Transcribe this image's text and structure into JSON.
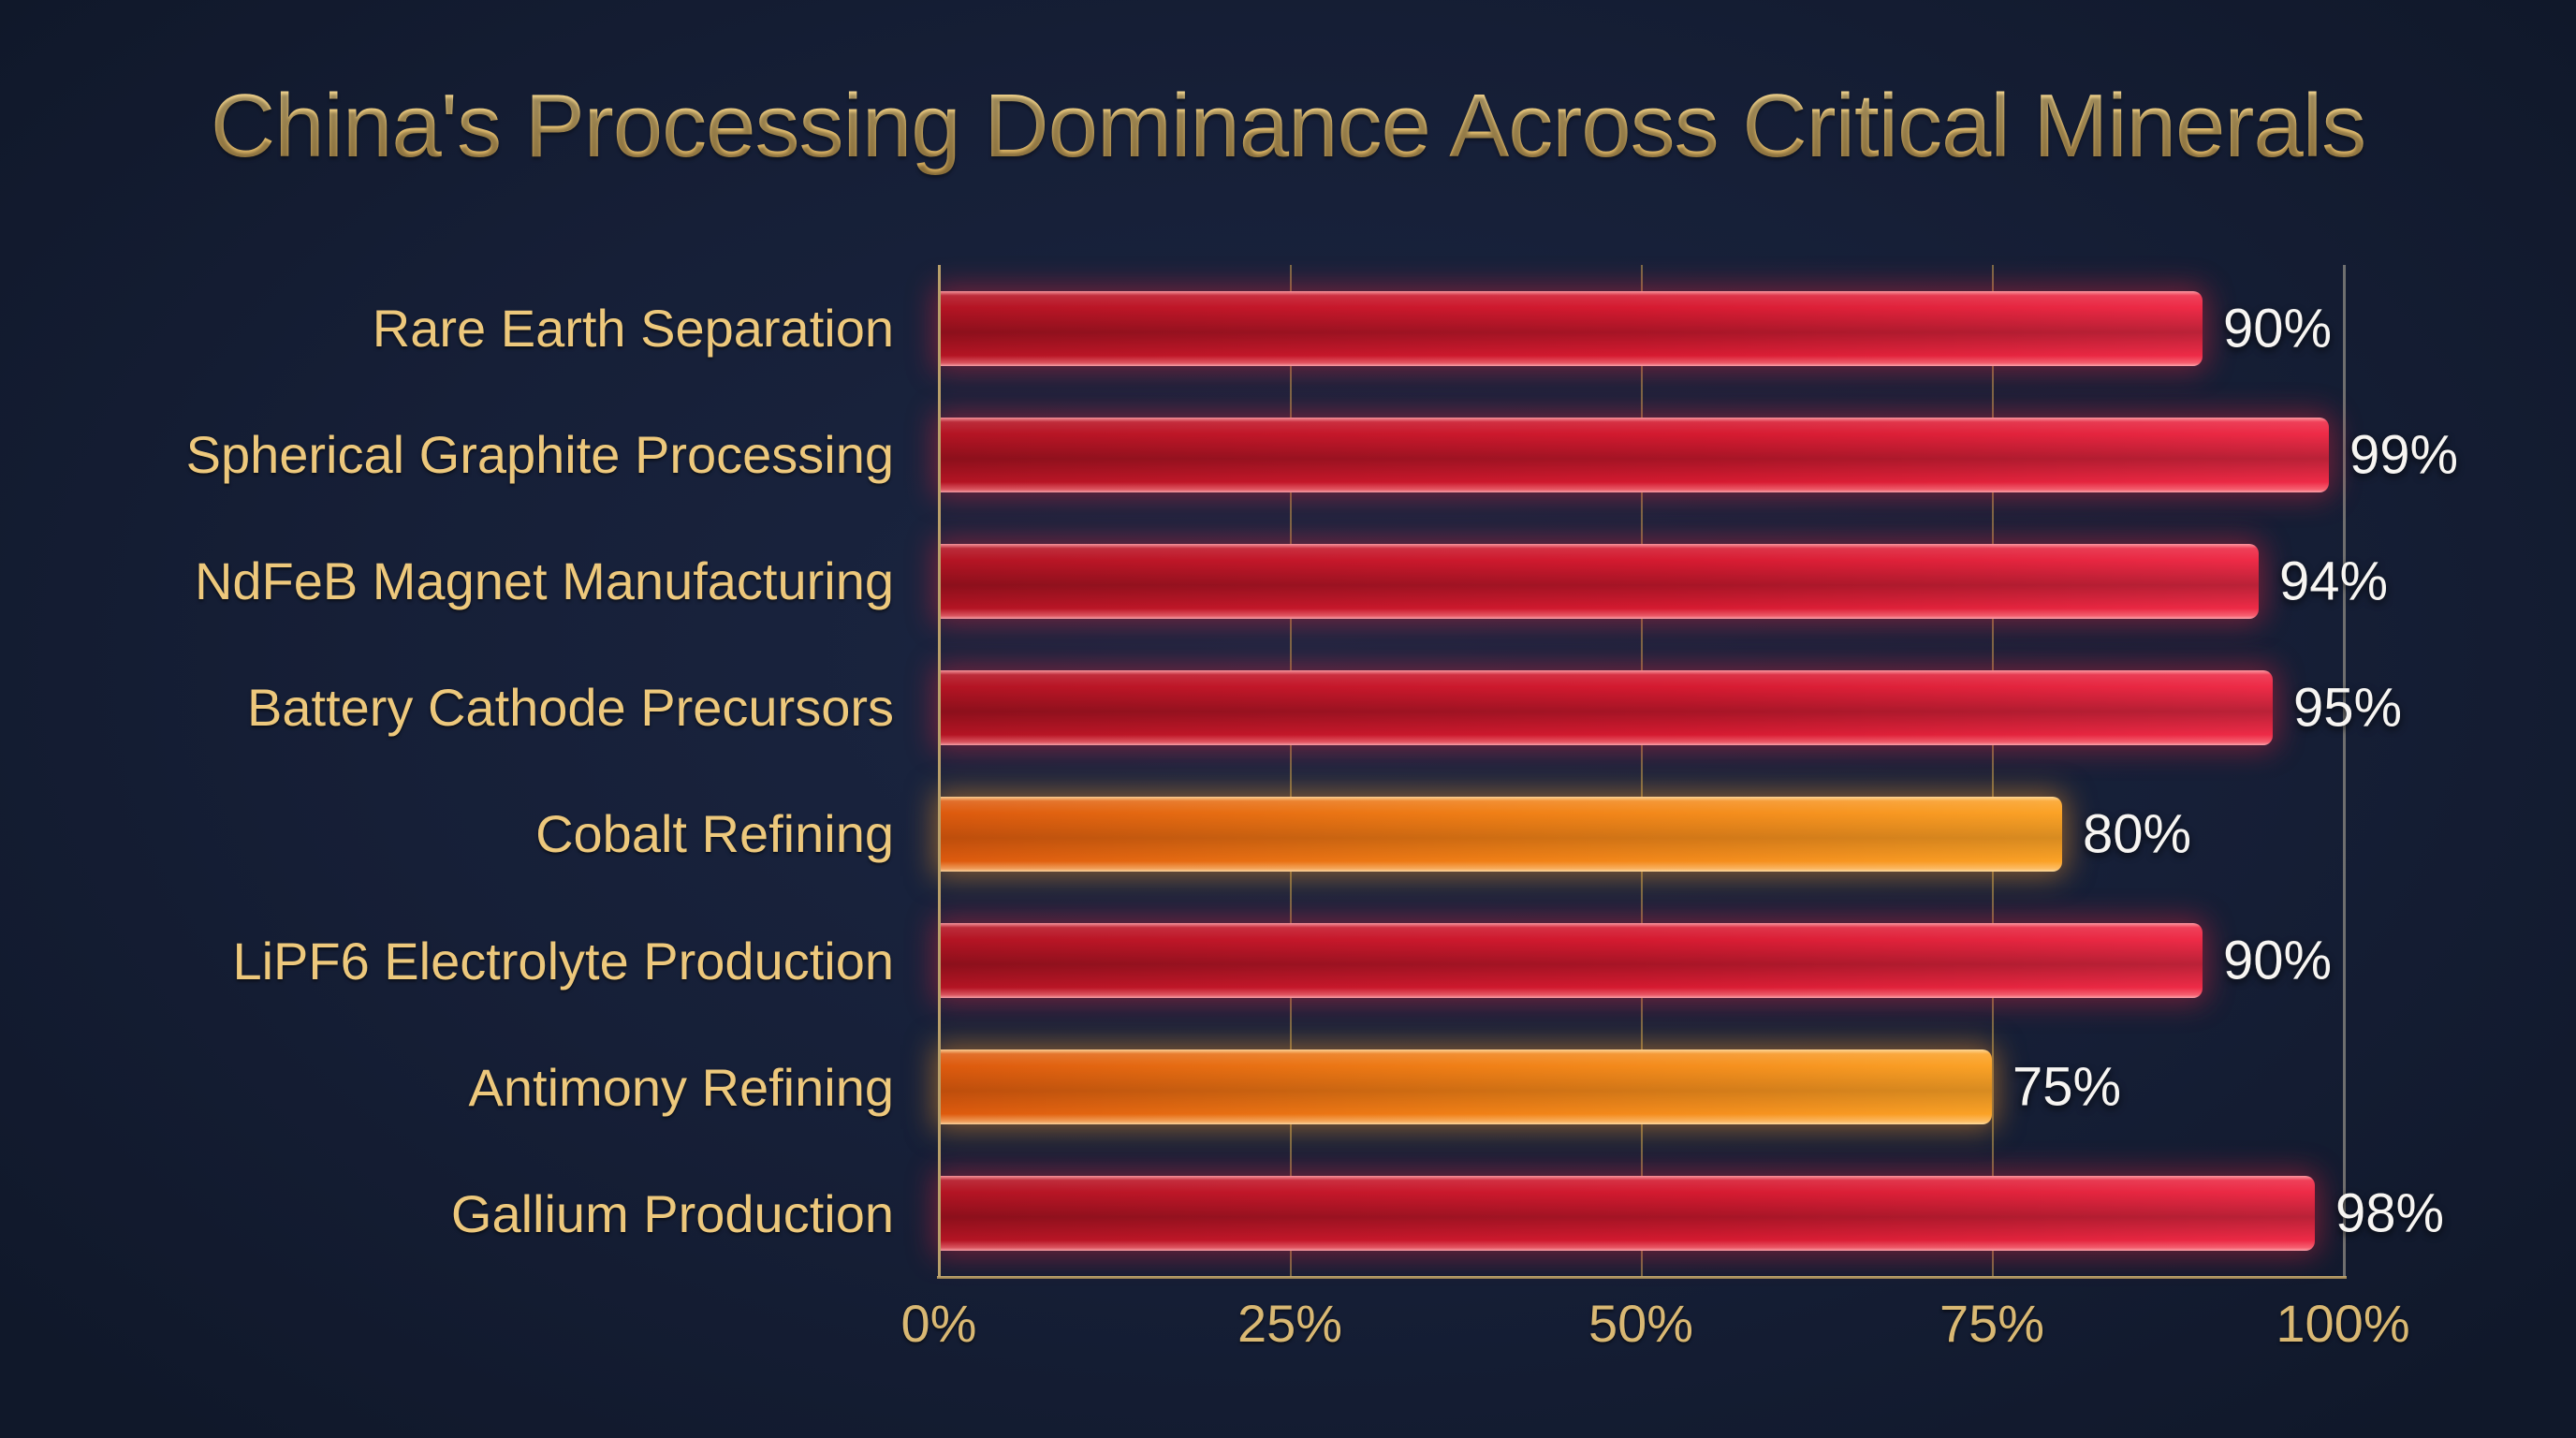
{
  "chart_data": {
    "type": "bar",
    "orientation": "horizontal",
    "title": "China's Processing Dominance Across Critical Minerals",
    "categories": [
      "Rare Earth Separation",
      "Spherical Graphite Processing",
      "NdFeB Magnet Manufacturing",
      "Battery Cathode Precursors",
      "Cobalt Refining",
      "LiPF6 Electrolyte Production",
      "Antimony Refining",
      "Gallium Production"
    ],
    "values": [
      90,
      99,
      94,
      95,
      80,
      90,
      75,
      98
    ],
    "value_labels": [
      "90%",
      "99%",
      "94%",
      "95%",
      "80%",
      "90%",
      "75%",
      "98%"
    ],
    "bar_palette": [
      "red",
      "red",
      "red",
      "red",
      "orange",
      "red",
      "orange",
      "red"
    ],
    "x_ticks": [
      "0%",
      "25%",
      "50%",
      "75%",
      "100%"
    ],
    "xlim": [
      0,
      100
    ],
    "xlabel": "",
    "ylabel": "",
    "grid": "vertical-only",
    "legend": "none",
    "colors": {
      "background": "#161f37",
      "title_gold": "#e9c475",
      "category_label_gold": "#edc87c",
      "tick_label_gold": "#d9b873",
      "value_label_white": "#f7f5f2",
      "red_bar_start": "#b31423",
      "red_bar_end": "#ee2b47",
      "orange_bar_start": "#dd5a0e",
      "orange_bar_end": "#fba226",
      "axis_gold": "#b9a06a",
      "gridline": "#796a46",
      "gridline_100": "#6f6f6f"
    }
  }
}
